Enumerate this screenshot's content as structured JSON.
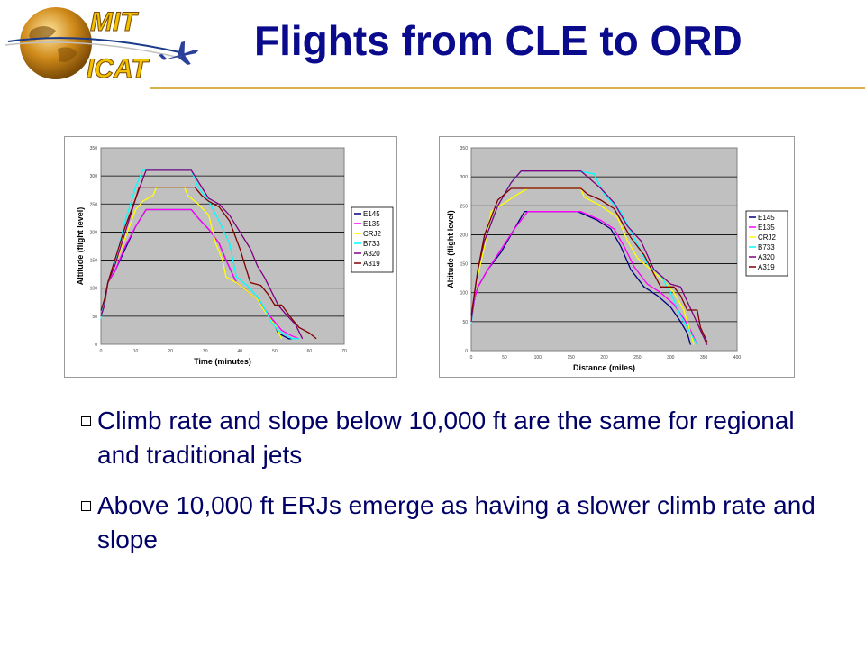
{
  "slide": {
    "title": "Flights from CLE to ORD",
    "logo": {
      "line1": "MIT",
      "line2": "ICAT"
    },
    "bullets": [
      "Climb rate and slope below 10,000 ft are the same for regional and traditional jets",
      "Above 10,000 ft ERJs emerge as having a slower climb rate and slope"
    ]
  },
  "colors": {
    "title": "#0a0a8c",
    "rule": "#d7b24a",
    "plot_bg": "#c0c0c0",
    "text": "#000066",
    "logo_text": "#f2c200"
  },
  "chart_data": [
    {
      "type": "line",
      "xlabel": "Time (minutes)",
      "ylabel": "Altitude (flight level)",
      "xlim": [
        0,
        70
      ],
      "ylim": [
        0,
        350
      ],
      "xticks": [
        "0",
        "10",
        "20",
        "30",
        "40",
        "50",
        "60",
        "70"
      ],
      "yticks": [
        "0",
        "50",
        "100",
        "150",
        "200",
        "250",
        "300",
        "350"
      ],
      "grid": true,
      "legend_position": "right",
      "series": [
        {
          "name": "E145",
          "color": "#000080",
          "x": [
            0,
            1,
            2,
            4,
            7,
            10,
            13,
            26,
            28,
            31,
            34,
            36,
            39,
            42,
            45,
            48,
            50,
            51,
            54,
            55
          ],
          "y": [
            50,
            70,
            110,
            130,
            170,
            210,
            240,
            240,
            225,
            205,
            180,
            150,
            110,
            95,
            80,
            55,
            35,
            20,
            10,
            10
          ]
        },
        {
          "name": "E135",
          "color": "#ff00ff",
          "x": [
            0,
            1,
            2,
            4,
            7,
            10,
            13,
            26,
            28,
            31,
            34,
            36,
            39,
            42,
            45,
            48,
            50,
            52,
            55,
            57
          ],
          "y": [
            50,
            70,
            110,
            130,
            175,
            210,
            240,
            240,
            225,
            205,
            180,
            150,
            110,
            95,
            80,
            55,
            40,
            25,
            15,
            10
          ]
        },
        {
          "name": "CRJ2",
          "color": "#ffff00",
          "x": [
            0,
            1,
            2,
            4,
            7,
            10,
            12,
            15,
            16,
            24,
            25,
            28,
            31,
            33,
            35,
            36,
            39,
            42,
            45,
            47,
            50,
            52
          ],
          "y": [
            50,
            70,
            110,
            140,
            190,
            240,
            255,
            265,
            280,
            280,
            265,
            250,
            230,
            180,
            150,
            120,
            110,
            95,
            80,
            60,
            35,
            10
          ]
        },
        {
          "name": "B733",
          "color": "#00ffff",
          "x": [
            0,
            1,
            2,
            4,
            7,
            10,
            12,
            26,
            28,
            31,
            34,
            37,
            39,
            42,
            45,
            47,
            49,
            51,
            55,
            57
          ],
          "y": [
            45,
            80,
            110,
            145,
            220,
            280,
            310,
            310,
            280,
            255,
            220,
            180,
            120,
            105,
            85,
            65,
            40,
            25,
            10,
            10
          ]
        },
        {
          "name": "A320",
          "color": "#800080",
          "x": [
            0,
            1,
            2,
            4,
            7,
            10,
            13,
            26,
            28,
            31,
            34,
            37,
            40,
            43,
            45,
            47,
            49,
            51,
            53,
            56,
            58
          ],
          "y": [
            50,
            70,
            110,
            140,
            200,
            260,
            310,
            310,
            290,
            260,
            250,
            230,
            200,
            170,
            140,
            120,
            95,
            70,
            55,
            35,
            10
          ]
        },
        {
          "name": "A319",
          "color": "#800000",
          "x": [
            0,
            1,
            2,
            4,
            7,
            10,
            11,
            27,
            29,
            31,
            34,
            37,
            40,
            43,
            46,
            48,
            50,
            52,
            55,
            57,
            60,
            62
          ],
          "y": [
            60,
            80,
            110,
            150,
            210,
            260,
            280,
            280,
            265,
            255,
            245,
            220,
            170,
            110,
            105,
            90,
            70,
            70,
            45,
            30,
            20,
            10
          ]
        }
      ]
    },
    {
      "type": "line",
      "xlabel": "Distance (miles)",
      "ylabel": "Altitude (flight level)",
      "xlim": [
        0,
        400
      ],
      "ylim": [
        0,
        350
      ],
      "xticks": [
        "0",
        "50",
        "100",
        "150",
        "200",
        "250",
        "300",
        "350",
        "400"
      ],
      "yticks": [
        "0",
        "50",
        "100",
        "150",
        "200",
        "250",
        "300",
        "350"
      ],
      "grid": true,
      "legend_position": "right",
      "series": [
        {
          "name": "E145",
          "color": "#000080",
          "x": [
            0,
            5,
            10,
            25,
            45,
            65,
            80,
            160,
            170,
            190,
            210,
            225,
            240,
            260,
            280,
            300,
            315,
            325,
            330
          ],
          "y": [
            50,
            90,
            110,
            140,
            170,
            210,
            240,
            240,
            235,
            225,
            210,
            180,
            140,
            110,
            95,
            75,
            50,
            30,
            10
          ]
        },
        {
          "name": "E135",
          "color": "#ff00ff",
          "x": [
            0,
            5,
            10,
            25,
            45,
            65,
            85,
            165,
            175,
            195,
            215,
            230,
            245,
            265,
            285,
            305,
            320,
            330,
            340
          ],
          "y": [
            50,
            90,
            110,
            140,
            175,
            210,
            240,
            240,
            235,
            225,
            210,
            180,
            145,
            115,
            100,
            80,
            55,
            35,
            10
          ]
        },
        {
          "name": "CRJ2",
          "color": "#ffff00",
          "x": [
            0,
            5,
            10,
            20,
            30,
            50,
            70,
            85,
            165,
            170,
            195,
            220,
            235,
            250,
            260,
            270,
            290,
            305,
            320,
            335
          ],
          "y": [
            50,
            100,
            130,
            180,
            240,
            255,
            270,
            280,
            280,
            265,
            250,
            230,
            190,
            160,
            150,
            140,
            120,
            100,
            70,
            10
          ]
        },
        {
          "name": "B733",
          "color": "#00ffff",
          "x": [
            0,
            5,
            10,
            20,
            40,
            60,
            75,
            155,
            160,
            185,
            200,
            225,
            245,
            265,
            285,
            300,
            315,
            330,
            340
          ],
          "y": [
            45,
            100,
            140,
            190,
            250,
            290,
            310,
            310,
            310,
            305,
            270,
            240,
            195,
            150,
            130,
            100,
            60,
            30,
            10
          ]
        },
        {
          "name": "A320",
          "color": "#800080",
          "x": [
            0,
            5,
            10,
            20,
            40,
            60,
            75,
            165,
            175,
            195,
            215,
            235,
            255,
            275,
            300,
            315,
            325,
            335,
            345,
            355
          ],
          "y": [
            50,
            100,
            140,
            190,
            250,
            290,
            310,
            310,
            300,
            280,
            255,
            215,
            190,
            140,
            115,
            110,
            85,
            60,
            35,
            10
          ]
        },
        {
          "name": "A319",
          "color": "#800000",
          "x": [
            0,
            5,
            10,
            20,
            40,
            60,
            70,
            165,
            175,
            195,
            215,
            240,
            260,
            285,
            305,
            315,
            325,
            340,
            345,
            355
          ],
          "y": [
            60,
            100,
            140,
            200,
            260,
            280,
            280,
            280,
            270,
            260,
            245,
            195,
            165,
            110,
            110,
            95,
            70,
            70,
            40,
            15
          ]
        }
      ]
    }
  ]
}
